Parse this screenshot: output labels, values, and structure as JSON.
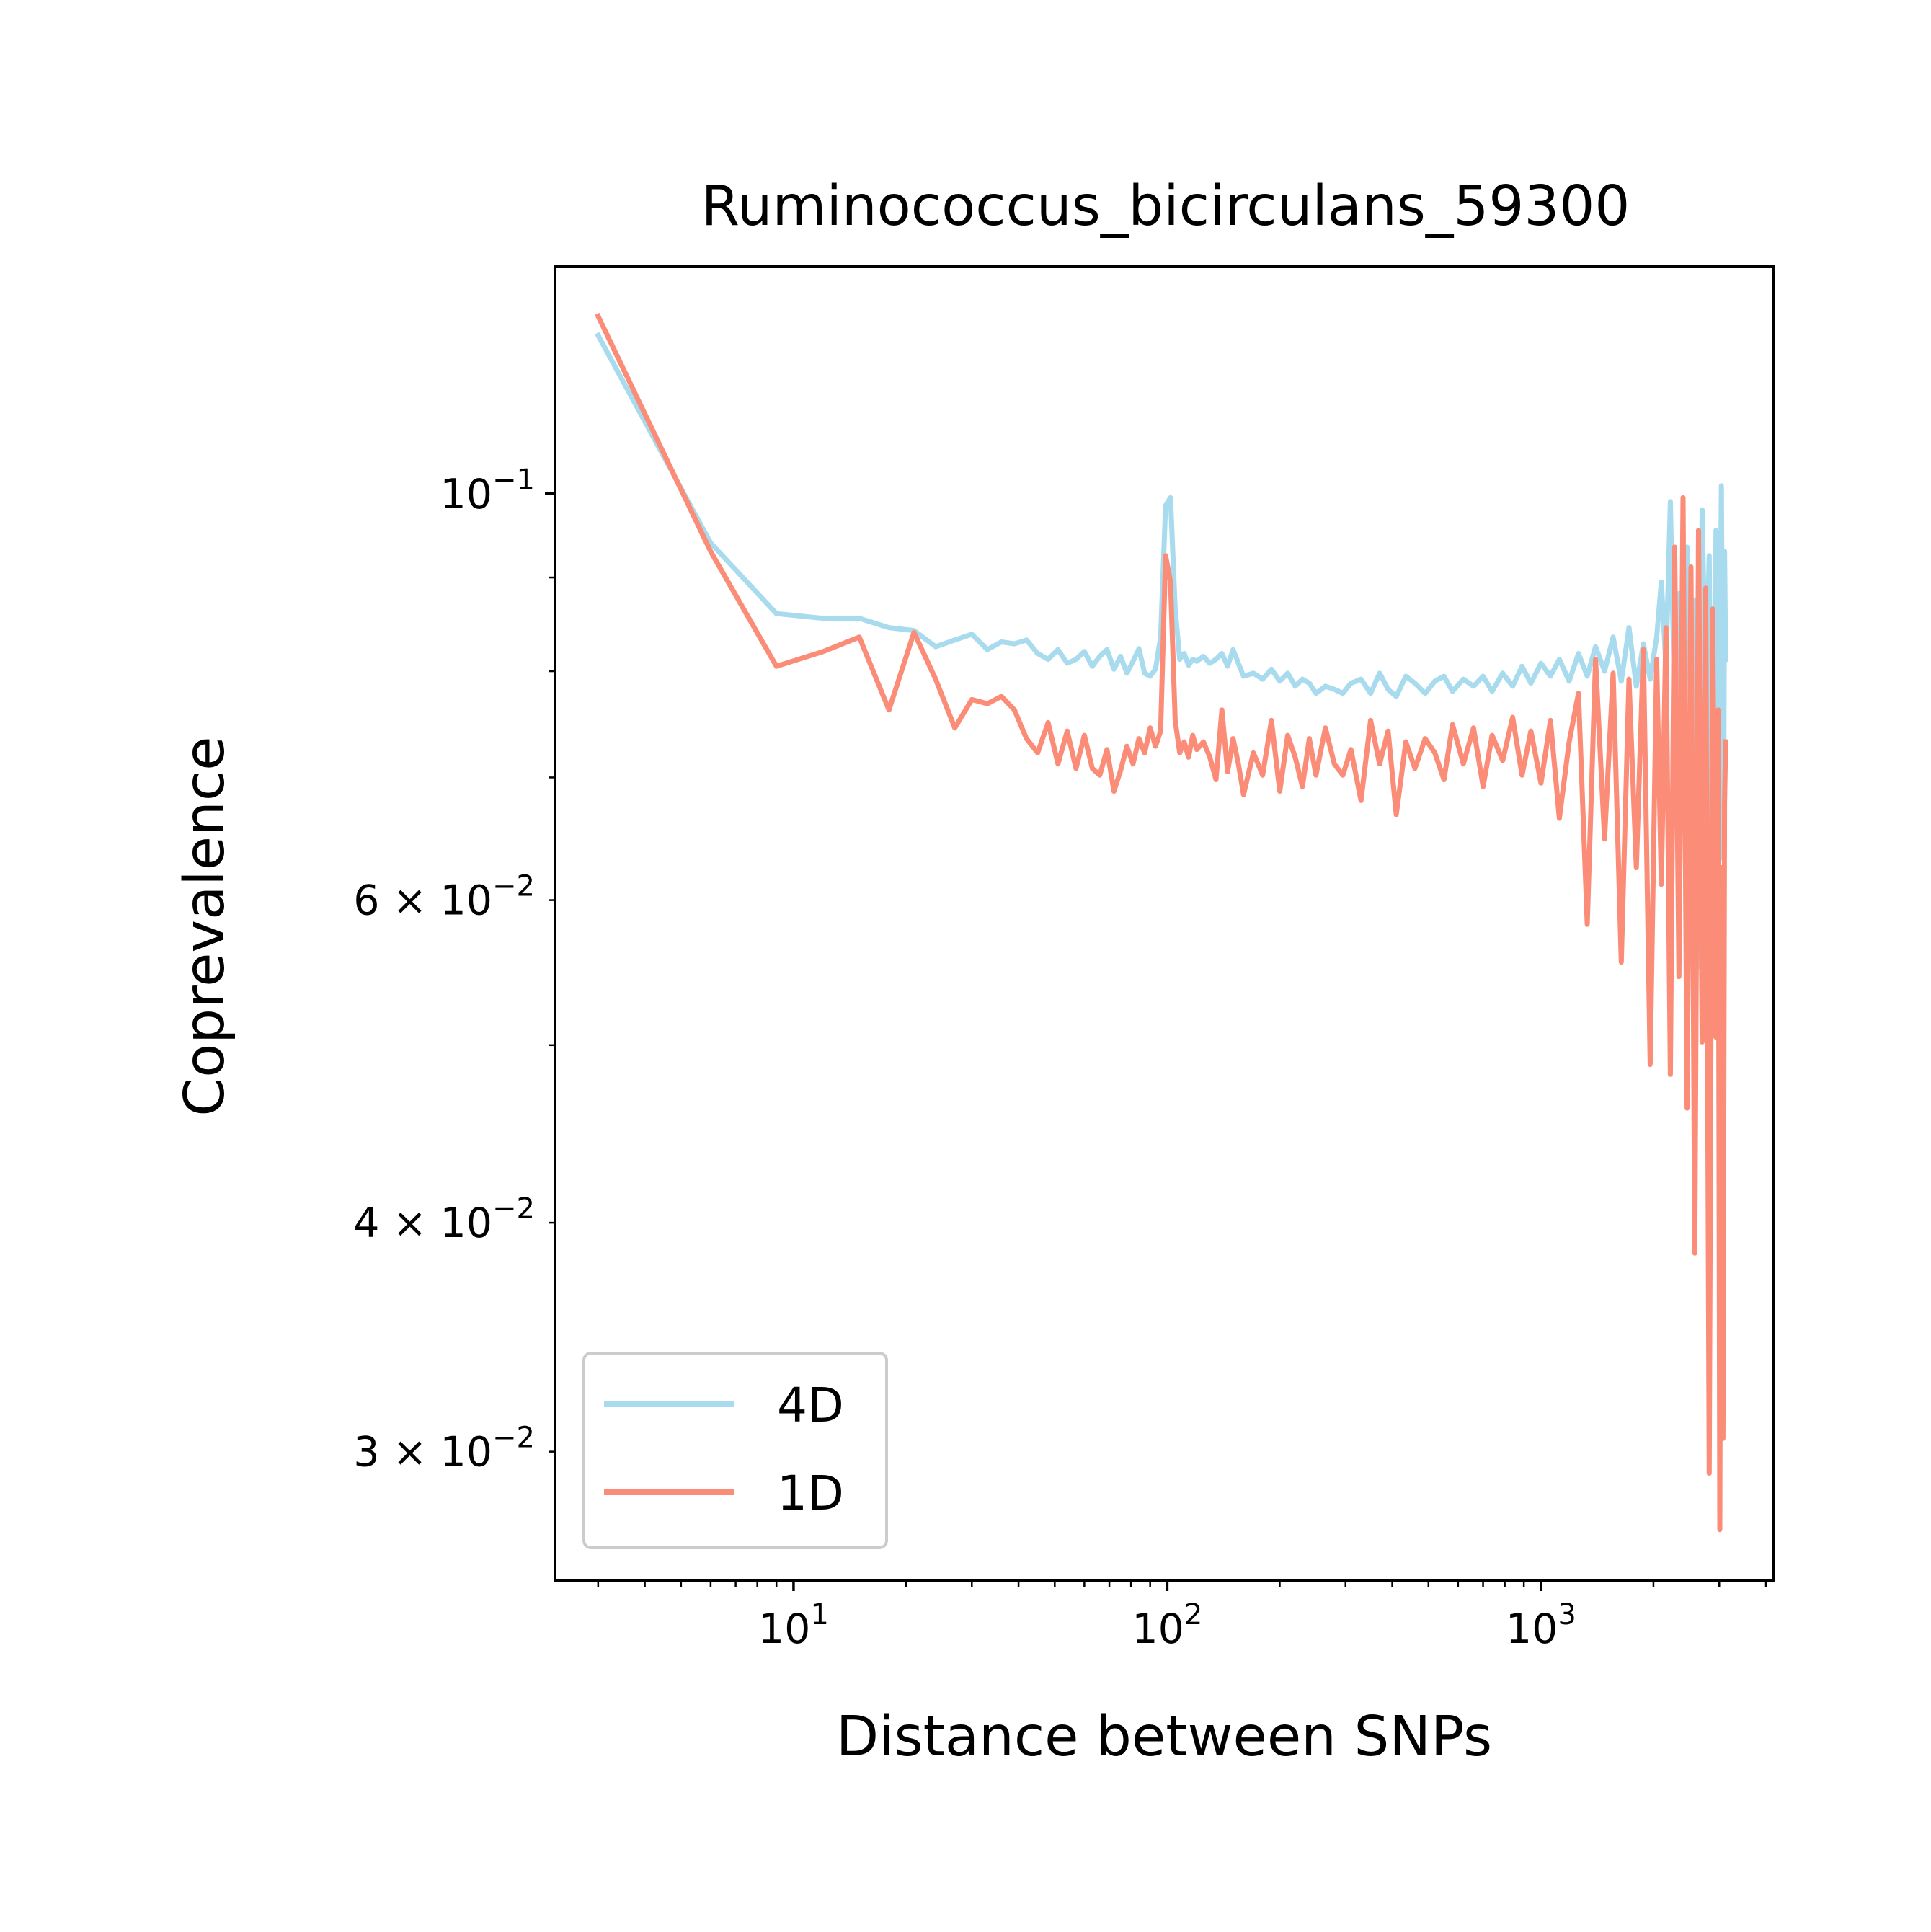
{
  "chart_data": {
    "type": "line",
    "title": "Ruminococcus_bicirculans_59300",
    "xlabel": "Distance between SNPs",
    "ylabel": "Coprevalence",
    "xscale": "log",
    "yscale": "log",
    "xlim": [
      2.3,
      4200
    ],
    "ylim": [
      0.0255,
      0.133
    ],
    "x_ticks": [
      {
        "value": 10,
        "base": "10",
        "exp": "1"
      },
      {
        "value": 100,
        "base": "10",
        "exp": "2"
      },
      {
        "value": 1000,
        "base": "10",
        "exp": "3"
      }
    ],
    "y_ticks": [
      {
        "value": 0.1,
        "mant": "",
        "base": "10",
        "exp": "−1"
      },
      {
        "value": 0.06,
        "mant": "6 × ",
        "base": "10",
        "exp": "−2"
      },
      {
        "value": 0.04,
        "mant": "4 × ",
        "base": "10",
        "exp": "−2"
      },
      {
        "value": 0.03,
        "mant": "3 × ",
        "base": "10",
        "exp": "−2"
      }
    ],
    "legend": {
      "position": "lower-left"
    },
    "series": [
      {
        "name": "4D",
        "color": "#a8dbed",
        "points": [
          [
            3,
            0.122
          ],
          [
            6,
            0.094
          ],
          [
            9,
            0.086
          ],
          [
            12,
            0.0855
          ],
          [
            15,
            0.0855
          ],
          [
            18,
            0.0845
          ],
          [
            21,
            0.0842
          ],
          [
            24,
            0.0825
          ],
          [
            27,
            0.0832
          ],
          [
            30,
            0.0838
          ],
          [
            33,
            0.0822
          ],
          [
            36,
            0.083
          ],
          [
            39,
            0.0828
          ],
          [
            42,
            0.0832
          ],
          [
            45,
            0.0818
          ],
          [
            48,
            0.0812
          ],
          [
            51,
            0.0822
          ],
          [
            54,
            0.0808
          ],
          [
            57,
            0.0812
          ],
          [
            60,
            0.082
          ],
          [
            63,
            0.0805
          ],
          [
            66,
            0.0815
          ],
          [
            69,
            0.0822
          ],
          [
            72,
            0.0802
          ],
          [
            75,
            0.0815
          ],
          [
            78,
            0.0798
          ],
          [
            81,
            0.081
          ],
          [
            84,
            0.0823
          ],
          [
            87,
            0.0798
          ],
          [
            90,
            0.0795
          ],
          [
            93,
            0.0802
          ],
          [
            96,
            0.0835
          ],
          [
            99,
            0.0985
          ],
          [
            102,
            0.0995
          ],
          [
            105,
            0.0865
          ],
          [
            108,
            0.0812
          ],
          [
            111,
            0.0818
          ],
          [
            114,
            0.0806
          ],
          [
            117,
            0.0812
          ],
          [
            120,
            0.081
          ],
          [
            125,
            0.0815
          ],
          [
            130,
            0.0808
          ],
          [
            135,
            0.0812
          ],
          [
            140,
            0.0818
          ],
          [
            145,
            0.0805
          ],
          [
            150,
            0.0822
          ],
          [
            155,
            0.0808
          ],
          [
            160,
            0.0795
          ],
          [
            170,
            0.0798
          ],
          [
            180,
            0.0792
          ],
          [
            190,
            0.0802
          ],
          [
            200,
            0.079
          ],
          [
            210,
            0.0798
          ],
          [
            220,
            0.0785
          ],
          [
            230,
            0.0792
          ],
          [
            240,
            0.0788
          ],
          [
            250,
            0.0778
          ],
          [
            265,
            0.0785
          ],
          [
            280,
            0.0782
          ],
          [
            295,
            0.0778
          ],
          [
            310,
            0.0788
          ],
          [
            330,
            0.0792
          ],
          [
            350,
            0.0778
          ],
          [
            370,
            0.0798
          ],
          [
            390,
            0.0782
          ],
          [
            410,
            0.0775
          ],
          [
            435,
            0.0795
          ],
          [
            460,
            0.0788
          ],
          [
            490,
            0.0778
          ],
          [
            520,
            0.079
          ],
          [
            550,
            0.0795
          ],
          [
            580,
            0.078
          ],
          [
            620,
            0.0792
          ],
          [
            660,
            0.0785
          ],
          [
            700,
            0.0795
          ],
          [
            740,
            0.078
          ],
          [
            790,
            0.0798
          ],
          [
            840,
            0.0785
          ],
          [
            890,
            0.0805
          ],
          [
            940,
            0.0788
          ],
          [
            1000,
            0.0808
          ],
          [
            1060,
            0.0795
          ],
          [
            1120,
            0.0812
          ],
          [
            1190,
            0.079
          ],
          [
            1260,
            0.0818
          ],
          [
            1330,
            0.0795
          ],
          [
            1400,
            0.0825
          ],
          [
            1480,
            0.08
          ],
          [
            1560,
            0.0835
          ],
          [
            1640,
            0.079
          ],
          [
            1720,
            0.0845
          ],
          [
            1800,
            0.0785
          ],
          [
            1880,
            0.0828
          ],
          [
            1960,
            0.0792
          ],
          [
            2040,
            0.0835
          ],
          [
            2100,
            0.0895
          ],
          [
            2160,
            0.0805
          ],
          [
            2220,
            0.099
          ],
          [
            2280,
            0.0765
          ],
          [
            2340,
            0.0882
          ],
          [
            2400,
            0.0698
          ],
          [
            2460,
            0.0935
          ],
          [
            2520,
            0.0745
          ],
          [
            2580,
            0.0875
          ],
          [
            2640,
            0.0552
          ],
          [
            2700,
            0.098
          ],
          [
            2760,
            0.0775
          ],
          [
            2820,
            0.0925
          ],
          [
            2880,
            0.0562
          ],
          [
            2940,
            0.0955
          ],
          [
            3000,
            0.071
          ],
          [
            3040,
            0.101
          ],
          [
            3080,
            0.0632
          ],
          [
            3100,
            0.093
          ],
          [
            3120,
            0.0812
          ]
        ]
      },
      {
        "name": "1D",
        "color": "#fa8c78",
        "points": [
          [
            3,
            0.125
          ],
          [
            6,
            0.093
          ],
          [
            9,
            0.0805
          ],
          [
            12,
            0.082
          ],
          [
            15,
            0.0835
          ],
          [
            18,
            0.0762
          ],
          [
            21,
            0.084
          ],
          [
            24,
            0.0792
          ],
          [
            27,
            0.0745
          ],
          [
            30,
            0.0772
          ],
          [
            33,
            0.0768
          ],
          [
            36,
            0.0775
          ],
          [
            39,
            0.0762
          ],
          [
            42,
            0.0735
          ],
          [
            45,
            0.0722
          ],
          [
            48,
            0.075
          ],
          [
            51,
            0.0712
          ],
          [
            54,
            0.0742
          ],
          [
            57,
            0.0708
          ],
          [
            60,
            0.0738
          ],
          [
            63,
            0.0708
          ],
          [
            66,
            0.0702
          ],
          [
            69,
            0.0725
          ],
          [
            72,
            0.0688
          ],
          [
            75,
            0.0706
          ],
          [
            78,
            0.0728
          ],
          [
            81,
            0.0712
          ],
          [
            84,
            0.0735
          ],
          [
            87,
            0.0722
          ],
          [
            90,
            0.0745
          ],
          [
            93,
            0.0728
          ],
          [
            96,
            0.0742
          ],
          [
            99,
            0.0925
          ],
          [
            102,
            0.0895
          ],
          [
            105,
            0.0752
          ],
          [
            108,
            0.0722
          ],
          [
            111,
            0.0732
          ],
          [
            114,
            0.0718
          ],
          [
            117,
            0.0738
          ],
          [
            120,
            0.0725
          ],
          [
            125,
            0.0732
          ],
          [
            130,
            0.0718
          ],
          [
            135,
            0.0698
          ],
          [
            140,
            0.0762
          ],
          [
            145,
            0.0705
          ],
          [
            150,
            0.0735
          ],
          [
            155,
            0.0712
          ],
          [
            160,
            0.0685
          ],
          [
            170,
            0.0722
          ],
          [
            180,
            0.0702
          ],
          [
            190,
            0.0752
          ],
          [
            200,
            0.0688
          ],
          [
            210,
            0.0738
          ],
          [
            220,
            0.0718
          ],
          [
            230,
            0.0692
          ],
          [
            240,
            0.0735
          ],
          [
            250,
            0.0702
          ],
          [
            265,
            0.0745
          ],
          [
            280,
            0.0712
          ],
          [
            295,
            0.0702
          ],
          [
            310,
            0.0725
          ],
          [
            330,
            0.068
          ],
          [
            350,
            0.0752
          ],
          [
            370,
            0.0712
          ],
          [
            390,
            0.0742
          ],
          [
            410,
            0.0668
          ],
          [
            435,
            0.0732
          ],
          [
            460,
            0.0708
          ],
          [
            490,
            0.0735
          ],
          [
            520,
            0.0722
          ],
          [
            550,
            0.0698
          ],
          [
            580,
            0.0748
          ],
          [
            620,
            0.0712
          ],
          [
            660,
            0.0745
          ],
          [
            700,
            0.0692
          ],
          [
            740,
            0.0738
          ],
          [
            790,
            0.0715
          ],
          [
            840,
            0.0755
          ],
          [
            890,
            0.0702
          ],
          [
            940,
            0.0742
          ],
          [
            1000,
            0.0695
          ],
          [
            1060,
            0.0752
          ],
          [
            1120,
            0.0665
          ],
          [
            1190,
            0.0732
          ],
          [
            1260,
            0.0778
          ],
          [
            1330,
            0.0582
          ],
          [
            1400,
            0.0812
          ],
          [
            1480,
            0.0648
          ],
          [
            1560,
            0.0798
          ],
          [
            1640,
            0.0555
          ],
          [
            1720,
            0.0792
          ],
          [
            1800,
            0.0625
          ],
          [
            1880,
            0.0822
          ],
          [
            1960,
            0.0488
          ],
          [
            2040,
            0.0812
          ],
          [
            2100,
            0.0612
          ],
          [
            2160,
            0.0845
          ],
          [
            2220,
            0.0482
          ],
          [
            2280,
            0.0935
          ],
          [
            2340,
            0.0545
          ],
          [
            2400,
            0.0995
          ],
          [
            2460,
            0.0462
          ],
          [
            2520,
            0.0912
          ],
          [
            2580,
            0.0385
          ],
          [
            2640,
            0.0955
          ],
          [
            2700,
            0.0502
          ],
          [
            2760,
            0.0888
          ],
          [
            2820,
            0.0292
          ],
          [
            2880,
            0.0865
          ],
          [
            2940,
            0.0505
          ],
          [
            2980,
            0.0762
          ],
          [
            3010,
            0.0272
          ],
          [
            3040,
            0.0625
          ],
          [
            3070,
            0.0305
          ],
          [
            3100,
            0.0678
          ],
          [
            3120,
            0.0732
          ]
        ]
      }
    ]
  }
}
